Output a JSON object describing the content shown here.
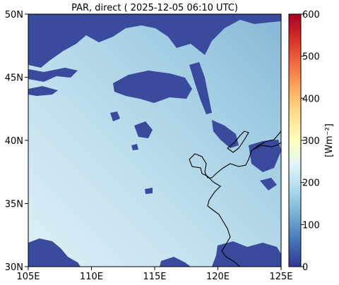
{
  "title": "PAR, direct ( 2025-12-05 06:10 UTC)",
  "map": {
    "lon_ticks": [
      "105E",
      "110E",
      "115E",
      "120E",
      "125E"
    ],
    "lat_ticks": [
      "50N",
      "45N",
      "40N",
      "35N",
      "30N"
    ],
    "lon_range": [
      105,
      125
    ],
    "lat_range": [
      30,
      50
    ]
  },
  "colorbar": {
    "label": "[Wm⁻²]",
    "ticks": [
      "600",
      "500",
      "400",
      "300",
      "200",
      "100",
      "0"
    ],
    "range": [
      0,
      600
    ],
    "colormap": "RdYlBu_r"
  },
  "colors": {
    "cloud": "#3a4a9c",
    "clear_sky_light": "#d5ecf4",
    "clear_sky_dark": "#8cbbd9",
    "coastline": "#000000"
  }
}
